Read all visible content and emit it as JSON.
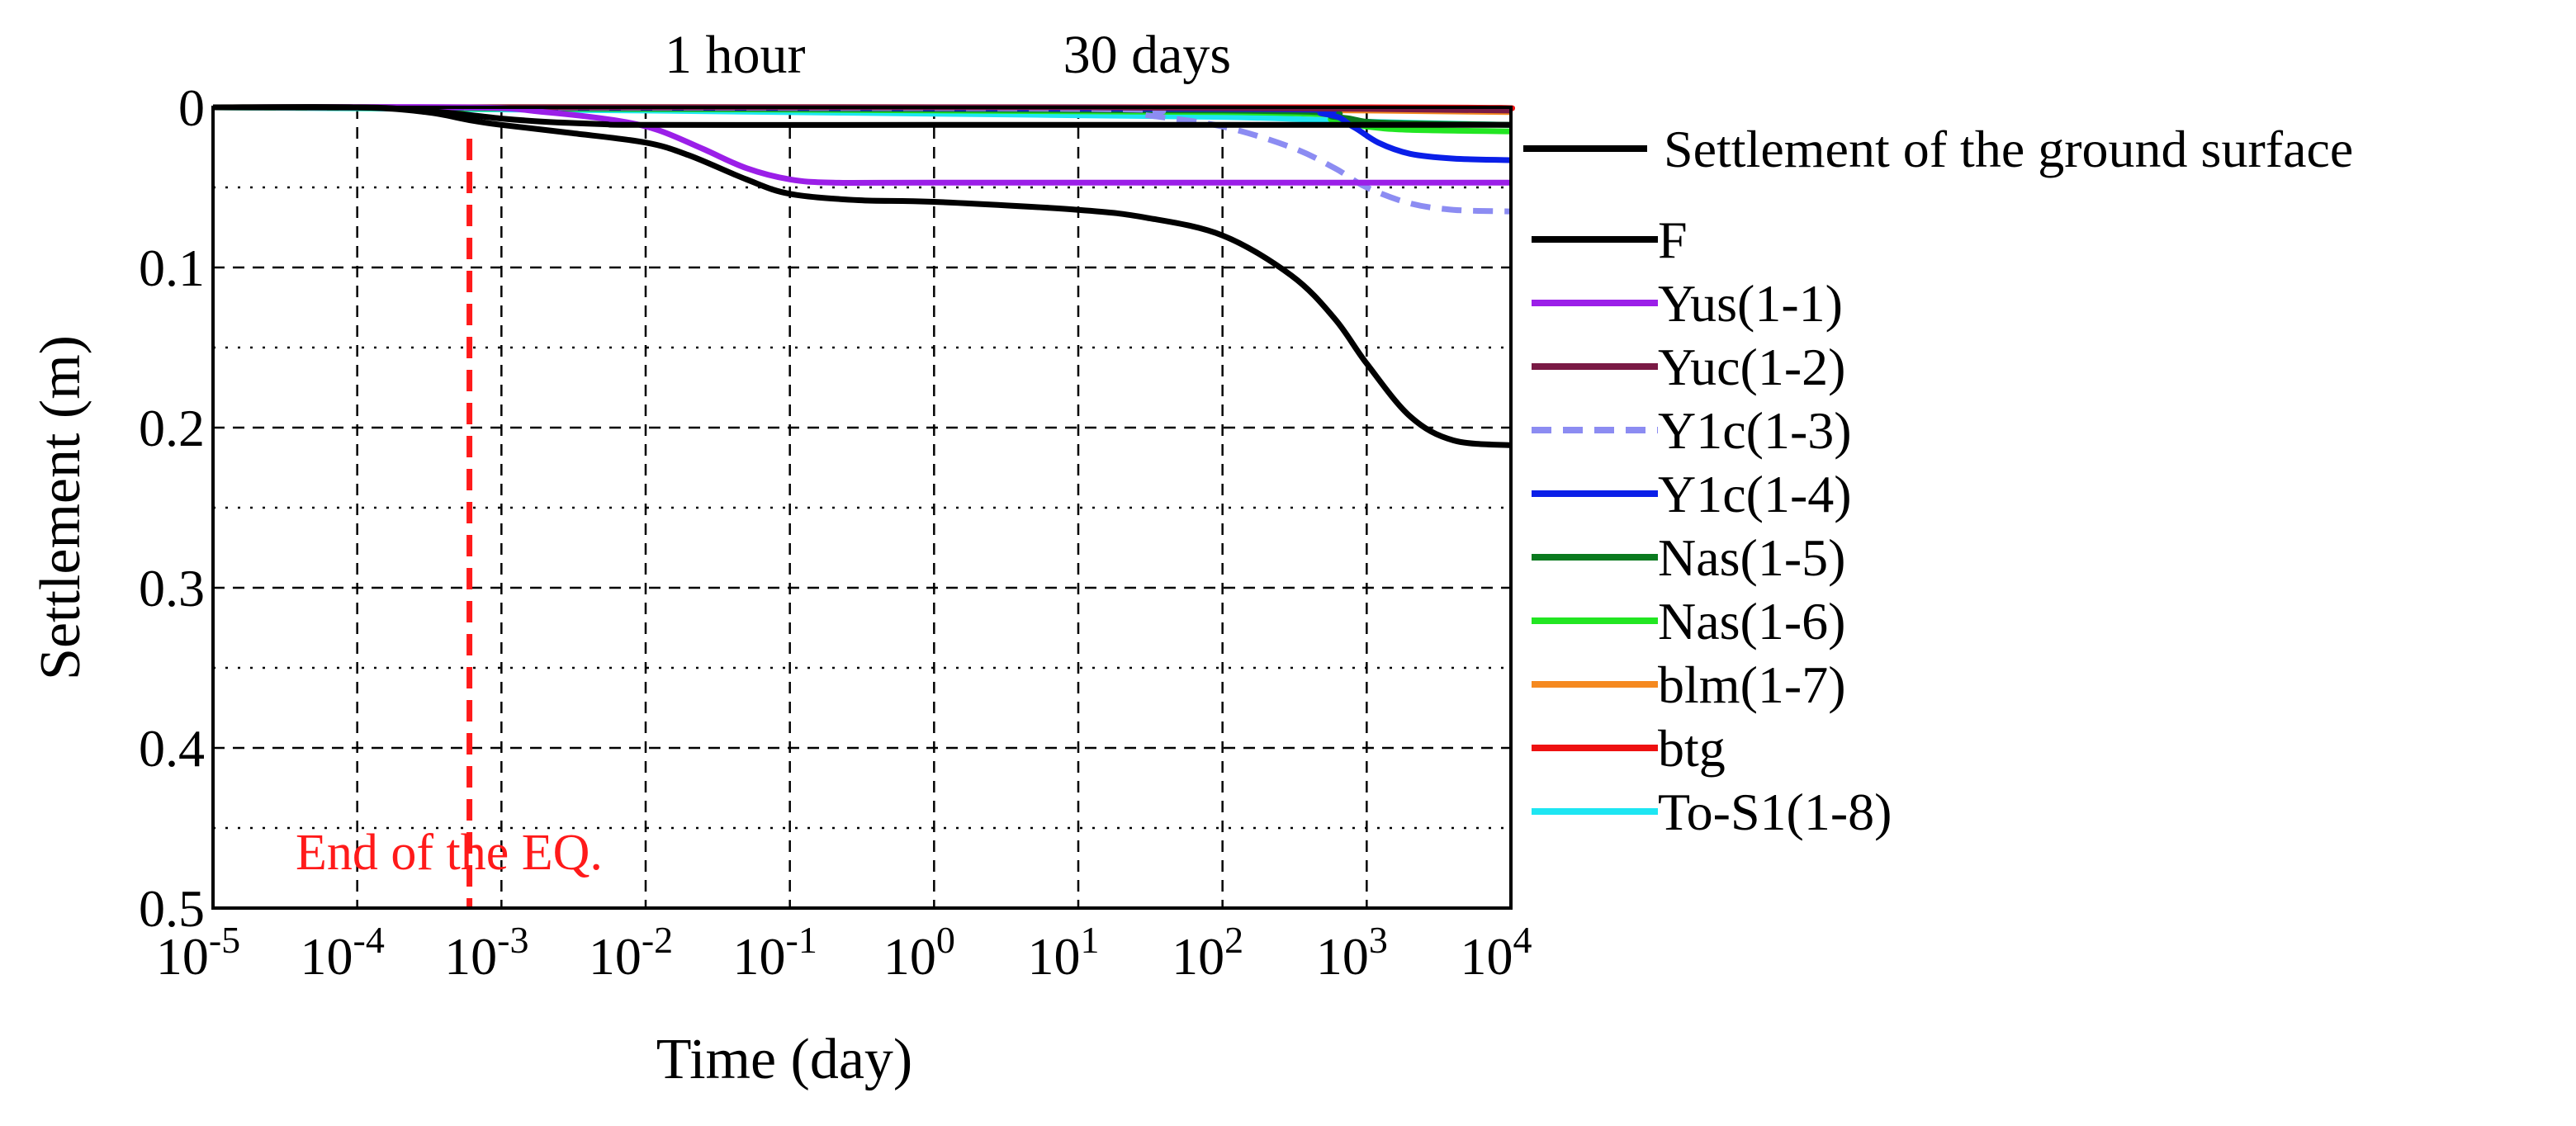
{
  "chart_data": {
    "type": "line",
    "title": "",
    "xlabel": "Time (day)",
    "ylabel": "Settlement (m)",
    "xscale": "log",
    "xlim": [
      1e-05,
      10000
    ],
    "ylim": [
      0,
      0.5
    ],
    "y_inverted": true,
    "grid": true,
    "x_ticks": [
      {
        "value": 1e-05,
        "base": "10",
        "exp": "-5"
      },
      {
        "value": 0.0001,
        "base": "10",
        "exp": "-4"
      },
      {
        "value": 0.001,
        "base": "10",
        "exp": "-3"
      },
      {
        "value": 0.01,
        "base": "10",
        "exp": "-2"
      },
      {
        "value": 0.1,
        "base": "10",
        "exp": "-1"
      },
      {
        "value": 1,
        "base": "10",
        "exp": "0"
      },
      {
        "value": 10,
        "base": "10",
        "exp": "1"
      },
      {
        "value": 100,
        "base": "10",
        "exp": "2"
      },
      {
        "value": 1000,
        "base": "10",
        "exp": "3"
      },
      {
        "value": 10000,
        "base": "10",
        "exp": "4"
      }
    ],
    "y_ticks": [
      {
        "value": 0,
        "label": "0"
      },
      {
        "value": 0.1,
        "label": "0.1"
      },
      {
        "value": 0.2,
        "label": "0.2"
      },
      {
        "value": 0.3,
        "label": "0.3"
      },
      {
        "value": 0.4,
        "label": "0.4"
      },
      {
        "value": 0.5,
        "label": "0.5"
      }
    ],
    "annotations": [
      {
        "text": "1 hour",
        "x": 0.04167
      },
      {
        "text": "30 days",
        "x": 30
      }
    ],
    "eq_marker": {
      "x": 0.0006,
      "label": "End of the EQ.",
      "color": "#ff1a1a"
    },
    "legend_position": "right",
    "series": [
      {
        "name": "Settlement of the ground surface",
        "color": "#000000",
        "dash": false,
        "x": [
          1e-05,
          0.0001,
          0.0002,
          0.0005,
          0.001,
          0.002,
          0.005,
          0.01,
          1,
          100,
          1000,
          10000
        ],
        "y": [
          0,
          0,
          0.001,
          0.004,
          0.007,
          0.009,
          0.0105,
          0.011,
          0.011,
          0.011,
          0.011,
          0.011
        ]
      },
      {
        "name": "F",
        "color": "#000000",
        "dash": false,
        "x": [
          1e-05,
          0.0001,
          0.0003,
          0.0006,
          0.001,
          0.003,
          0.01,
          0.02,
          0.05,
          0.1,
          0.3,
          1,
          10,
          30,
          100,
          300,
          600,
          1000,
          2000,
          4000,
          10000
        ],
        "y": [
          0,
          0,
          0.003,
          0.008,
          0.011,
          0.016,
          0.022,
          0.03,
          0.045,
          0.054,
          0.058,
          0.059,
          0.064,
          0.069,
          0.08,
          0.105,
          0.132,
          0.16,
          0.193,
          0.208,
          0.211
        ]
      },
      {
        "name": "Yus(1-1)",
        "color": "#9b1fe8",
        "dash": false,
        "x": [
          1e-05,
          0.0006,
          0.002,
          0.006,
          0.012,
          0.025,
          0.05,
          0.1,
          0.2,
          1,
          10000
        ],
        "y": [
          0,
          0,
          0.003,
          0.008,
          0.014,
          0.026,
          0.038,
          0.045,
          0.047,
          0.047,
          0.047
        ]
      },
      {
        "name": "Yuc(1-2)",
        "color": "#7a1a45",
        "dash": false,
        "x": [
          1e-05,
          10,
          1000,
          10000
        ],
        "y": [
          0,
          0,
          0.001,
          0.002
        ]
      },
      {
        "name": "Y1c(1-3)",
        "color": "#8c8cf2",
        "dash": true,
        "x": [
          1e-05,
          10,
          30,
          100,
          300,
          600,
          1000,
          2000,
          4000,
          10000
        ],
        "y": [
          0,
          0.001,
          0.005,
          0.012,
          0.025,
          0.038,
          0.05,
          0.06,
          0.064,
          0.065
        ]
      },
      {
        "name": "Y1c(1-4)",
        "color": "#0a1fe8",
        "dash": false,
        "x": [
          1e-05,
          100,
          500,
          800,
          1200,
          2000,
          4000,
          10000
        ],
        "y": [
          0,
          0.001,
          0.004,
          0.012,
          0.022,
          0.029,
          0.032,
          0.033
        ]
      },
      {
        "name": "Nas(1-5)",
        "color": "#0a7a1f",
        "dash": false,
        "x": [
          1e-05,
          100,
          600,
          1000,
          2000,
          10000
        ],
        "y": [
          0,
          0.002,
          0.006,
          0.009,
          0.01,
          0.011
        ]
      },
      {
        "name": "Nas(1-6)",
        "color": "#22e622",
        "dash": false,
        "x": [
          1e-05,
          100,
          600,
          1000,
          2000,
          10000
        ],
        "y": [
          0,
          0.003,
          0.008,
          0.012,
          0.014,
          0.015
        ]
      },
      {
        "name": "blm(1-7)",
        "color": "#f5891f",
        "dash": false,
        "x": [
          1e-05,
          1,
          1000,
          10000
        ],
        "y": [
          0,
          0,
          0.002,
          0.003
        ]
      },
      {
        "name": "btg",
        "color": "#ee1111",
        "dash": false,
        "x": [
          1e-05,
          1000,
          10000
        ],
        "y": [
          0,
          0,
          0.001
        ]
      },
      {
        "name": "To-S1(1-8)",
        "color": "#1ee6f2",
        "dash": false,
        "x": [
          1e-05,
          0.01,
          1,
          100,
          1000,
          10000
        ],
        "y": [
          0,
          0.002,
          0.004,
          0.006,
          0.009,
          0.011
        ]
      }
    ]
  }
}
